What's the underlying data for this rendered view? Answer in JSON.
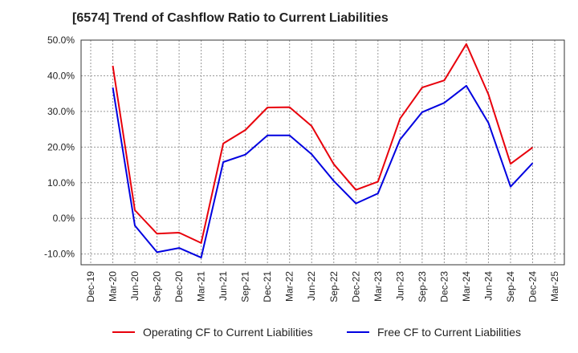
{
  "chart_data": {
    "type": "line",
    "title": "[6574]  Trend of Cashflow Ratio to Current Liabilities",
    "xlabel": "",
    "ylabel": "",
    "ylim": [
      -13,
      50
    ],
    "y_ticks": [
      50,
      40,
      30,
      20,
      10,
      0,
      -10
    ],
    "y_tick_labels": [
      "50.0%",
      "40.0%",
      "30.0%",
      "20.0%",
      "10.0%",
      "0.0%",
      "-10.0%"
    ],
    "x_tick_labels": [
      "Dec-19",
      "Mar-20",
      "Jun-20",
      "Sep-20",
      "Dec-20",
      "Mar-21",
      "Jun-21",
      "Sep-21",
      "Dec-21",
      "Mar-22",
      "Jun-22",
      "Sep-22",
      "Dec-22",
      "Mar-23",
      "Jun-23",
      "Sep-23",
      "Dec-23",
      "Mar-24",
      "Jun-24",
      "Sep-24",
      "Dec-24",
      "Mar-25"
    ],
    "grid": true,
    "legend_position": "bottom",
    "x": [
      "Mar-20",
      "Jun-20",
      "Sep-20",
      "Dec-20",
      "Mar-21",
      "Jun-21",
      "Sep-21",
      "Dec-21",
      "Mar-22",
      "Jun-22",
      "Sep-22",
      "Dec-22",
      "Mar-23",
      "Jun-23",
      "Sep-23",
      "Dec-23",
      "Mar-24",
      "Jun-24",
      "Sep-24",
      "Dec-24"
    ],
    "series": [
      {
        "name": "Operating CF to Current Liabilities",
        "color": "#e8000b",
        "values": [
          42.8,
          2.3,
          -4.3,
          -4.0,
          -6.9,
          21.0,
          24.8,
          31.1,
          31.2,
          25.9,
          15.2,
          8.0,
          10.3,
          28.0,
          36.7,
          38.7,
          48.9,
          34.8,
          15.3,
          19.9
        ]
      },
      {
        "name": "Free CF to Current Liabilities",
        "color": "#0000e0",
        "values": [
          36.7,
          -2.0,
          -9.5,
          -8.3,
          -11.0,
          15.8,
          17.9,
          23.3,
          23.3,
          18.0,
          10.5,
          4.2,
          7.0,
          22.1,
          29.8,
          32.4,
          37.2,
          26.8,
          8.9,
          15.5
        ]
      }
    ]
  }
}
